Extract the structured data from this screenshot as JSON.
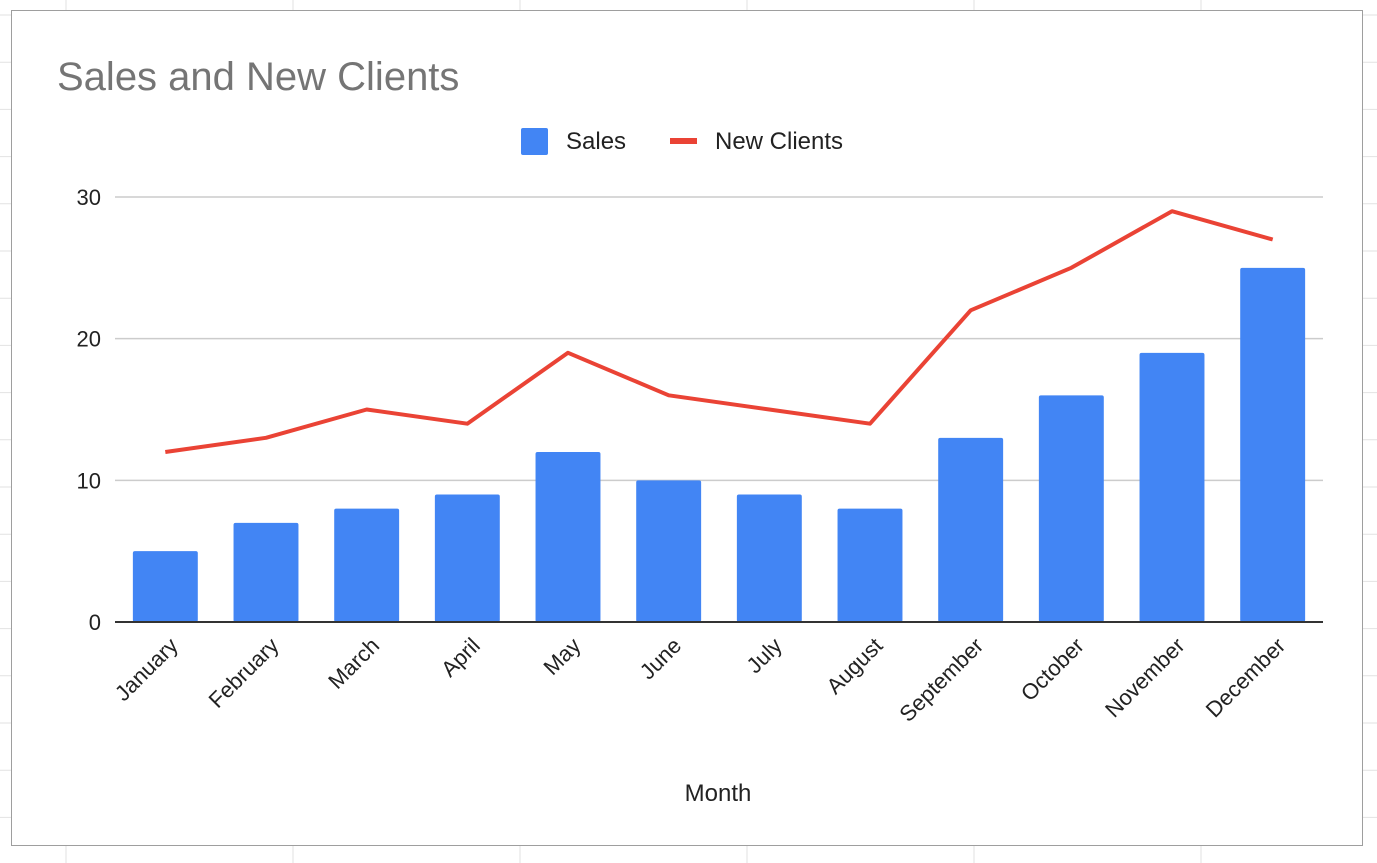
{
  "chart_data": {
    "type": "bar",
    "title": "Sales and New Clients",
    "xlabel": "Month",
    "ylabel": "",
    "ylim": [
      0,
      30
    ],
    "yticks": [
      "0",
      "10",
      "20",
      "30"
    ],
    "grid": true,
    "legend": "top",
    "categories": [
      "January",
      "February",
      "March",
      "April",
      "May",
      "June",
      "July",
      "August",
      "September",
      "October",
      "November",
      "December"
    ],
    "series": [
      {
        "name": "Sales",
        "type": "bar",
        "color": "#4285f4",
        "values": [
          5,
          7,
          8,
          9,
          12,
          10,
          9,
          8,
          13,
          16,
          19,
          25
        ]
      },
      {
        "name": "New Clients",
        "type": "line",
        "color": "#ea4335",
        "values": [
          12,
          13,
          15,
          14,
          19,
          16,
          15,
          14,
          22,
          25,
          29,
          27
        ]
      }
    ]
  }
}
